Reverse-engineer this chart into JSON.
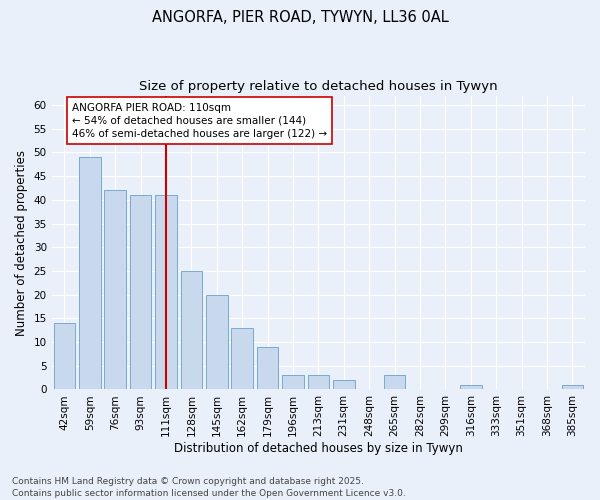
{
  "title1": "ANGORFA, PIER ROAD, TYWYN, LL36 0AL",
  "title2": "Size of property relative to detached houses in Tywyn",
  "xlabel": "Distribution of detached houses by size in Tywyn",
  "ylabel": "Number of detached properties",
  "categories": [
    "42sqm",
    "59sqm",
    "76sqm",
    "93sqm",
    "111sqm",
    "128sqm",
    "145sqm",
    "162sqm",
    "179sqm",
    "196sqm",
    "213sqm",
    "231sqm",
    "248sqm",
    "265sqm",
    "282sqm",
    "299sqm",
    "316sqm",
    "333sqm",
    "351sqm",
    "368sqm",
    "385sqm"
  ],
  "values": [
    14,
    49,
    42,
    41,
    41,
    25,
    20,
    13,
    9,
    3,
    3,
    2,
    0,
    3,
    0,
    0,
    1,
    0,
    0,
    0,
    1
  ],
  "bar_color": "#c9d9ed",
  "bar_edge_color": "#7aaad0",
  "vline_index": 4,
  "vline_color": "#cc0000",
  "annotation_line1": "ANGORFA PIER ROAD: 110sqm",
  "annotation_line2": "← 54% of detached houses are smaller (144)",
  "annotation_line3": "46% of semi-detached houses are larger (122) →",
  "annotation_box_color": "#ffffff",
  "annotation_box_edge_color": "#cc0000",
  "ylim": [
    0,
    62
  ],
  "yticks": [
    0,
    5,
    10,
    15,
    20,
    25,
    30,
    35,
    40,
    45,
    50,
    55,
    60
  ],
  "bg_color": "#eaf0f9",
  "grid_color": "#ffffff",
  "footer": "Contains HM Land Registry data © Crown copyright and database right 2025.\nContains public sector information licensed under the Open Government Licence v3.0.",
  "title1_fontsize": 10.5,
  "title2_fontsize": 9.5,
  "xlabel_fontsize": 8.5,
  "ylabel_fontsize": 8.5,
  "tick_fontsize": 7.5,
  "annotation_fontsize": 7.5,
  "footer_fontsize": 6.5
}
